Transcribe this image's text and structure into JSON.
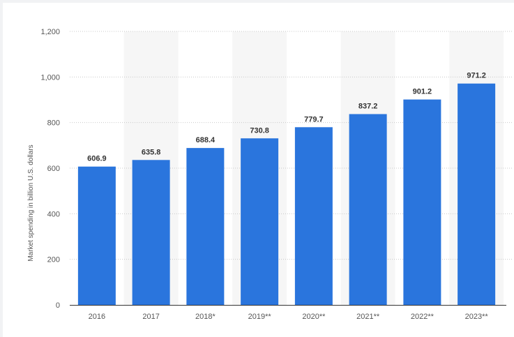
{
  "chart_data": {
    "type": "bar",
    "title": "",
    "xlabel": "",
    "ylabel": "Market spending in billion U.S. dollars",
    "categories": [
      "2016",
      "2017",
      "2018*",
      "2019**",
      "2020**",
      "2021**",
      "2022**",
      "2023**"
    ],
    "values": [
      606.9,
      635.8,
      688.4,
      730.8,
      779.7,
      837.2,
      901.2,
      971.2
    ],
    "data_labels": [
      "606.9",
      "635.8",
      "688.4",
      "730.8",
      "779.7",
      "837.2",
      "901.2",
      "971.2"
    ],
    "yticks": [
      "0",
      "200",
      "400",
      "600",
      "800",
      "1,000",
      "1,200"
    ],
    "ylim": [
      0,
      1200
    ],
    "grid": true,
    "legend": "none",
    "bar_color": "#2a75dd",
    "band_color": "#f6f6f6"
  }
}
